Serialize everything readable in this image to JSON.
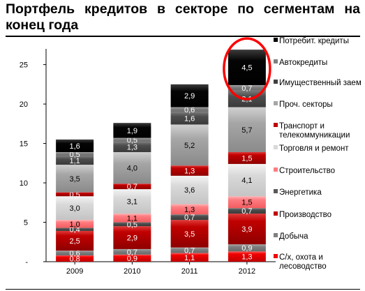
{
  "title": "Портфель кредитов в секторе по сегментам на конец года",
  "chart_data": {
    "type": "bar",
    "stacked": true,
    "title": "Портфель кредитов в секторе по сегментам на конец года",
    "xlabel": "",
    "ylabel": "",
    "categories": [
      "2009",
      "2010",
      "2011",
      "2012"
    ],
    "ylim": [
      0,
      27
    ],
    "yticks": [
      0,
      5,
      10,
      15,
      20,
      25
    ],
    "ytick_labels": [
      "-",
      "5",
      "10",
      "15",
      "20",
      "25"
    ],
    "grid": false,
    "legend_position": "right",
    "series": [
      {
        "name": "С/х, охота и лесоводство",
        "color": "#f00000",
        "values": [
          0.8,
          0.9,
          1.1,
          1.3
        ],
        "labels": [
          "0,8",
          "0,9",
          "1,1",
          "1,3"
        ]
      },
      {
        "name": "Добыча",
        "color": "#808080",
        "values": [
          0.6,
          0.7,
          0.7,
          0.9
        ],
        "labels": [
          "0,6",
          "0,7",
          "0,7",
          "0,9"
        ]
      },
      {
        "name": "Производство",
        "color": "#c00000",
        "values": [
          2.5,
          2.9,
          3.5,
          3.9
        ],
        "labels": [
          "2,5",
          "2,9",
          "3,5",
          "3,9"
        ]
      },
      {
        "name": "Энергетика",
        "color": "#595959",
        "values": [
          0.4,
          0.5,
          0.7,
          0.7
        ],
        "labels": [
          "0,4",
          "0,5",
          "0,7",
          "0,7"
        ]
      },
      {
        "name": "Строительство",
        "color": "#ff7c80",
        "values": [
          1.0,
          1.1,
          1.3,
          1.5
        ],
        "labels": [
          "1,0",
          "1,1",
          "1,3",
          "1,5"
        ]
      },
      {
        "name": "Торговля и ремонт",
        "color": "#d9d9d9",
        "values": [
          3.0,
          3.1,
          3.6,
          4.1
        ],
        "labels": [
          "3,0",
          "3,1",
          "3,6",
          "4,1"
        ]
      },
      {
        "name": "Транспорт и телекоммуникации",
        "color": "#c00000",
        "values": [
          0.5,
          0.7,
          1.3,
          1.5
        ],
        "labels": [
          "0,5",
          "0,7",
          "1,3",
          "1,5"
        ]
      },
      {
        "name": "Проч. секторы",
        "color": "#a6a6a6",
        "values": [
          3.5,
          4.0,
          5.2,
          5.7
        ],
        "labels": [
          "3,5",
          "4,0",
          "5,2",
          "5,7"
        ]
      },
      {
        "name": "Имущественный заем",
        "color": "#404040",
        "values": [
          1.1,
          1.3,
          1.6,
          2.1
        ],
        "labels": [
          "1,1",
          "1,3",
          "1,6",
          "2,1"
        ]
      },
      {
        "name": "Автокредиты",
        "color": "#7f7f7f",
        "values": [
          0.5,
          0.5,
          0.6,
          0.7
        ],
        "labels": [
          "0,5",
          "0,5",
          "0,6",
          "0,7"
        ]
      },
      {
        "name": "Потребит. кредиты",
        "color": "#000000",
        "values": [
          1.6,
          1.9,
          2.9,
          4.5
        ],
        "labels": [
          "1,6",
          "1,9",
          "2,9",
          "4,5"
        ]
      }
    ],
    "legend_order": [
      "Потребит. кредиты",
      "Автокредиты",
      "Имущественный заем",
      "Проч. секторы",
      "Транспорт и телекоммуникации",
      "Торговля и ремонт",
      "Строительство",
      "Энергетика",
      "Производство",
      "Добыча",
      "С/х, охота и лесоводство"
    ],
    "highlight": {
      "category": "2012",
      "series": "Потребит. кредиты",
      "shape": "ellipse",
      "color": "#ff0000"
    }
  }
}
